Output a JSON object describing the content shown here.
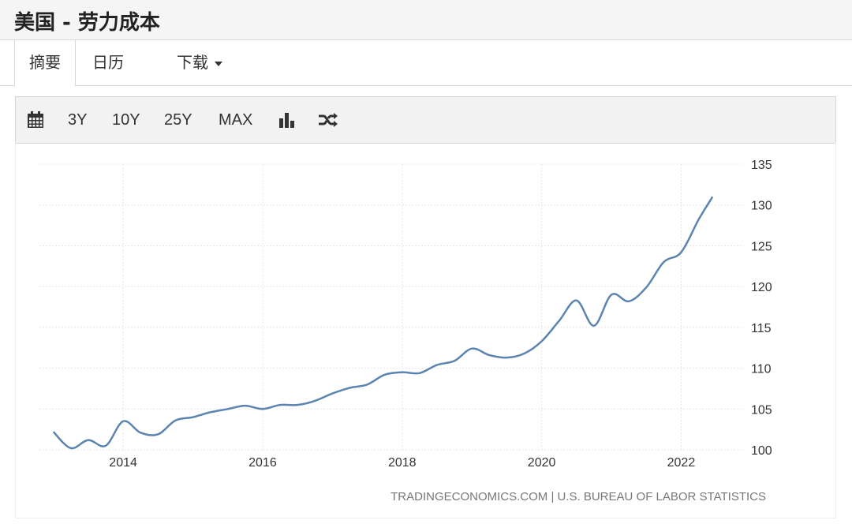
{
  "page": {
    "title": "美国 - 劳力成本"
  },
  "tabs": [
    {
      "label": "摘要"
    },
    {
      "label": "日历"
    },
    {
      "label": "下载"
    }
  ],
  "toolbar": {
    "calendar_icon": "calendar-icon",
    "ranges": [
      "3Y",
      "10Y",
      "25Y",
      "MAX"
    ],
    "bar_chart_icon": "bar-chart-icon",
    "shuffle_icon": "shuffle-icon"
  },
  "colors": {
    "line": "#5b84b1",
    "grid": "#e8e8e8",
    "toolbar_bg": "#f2f2f2"
  },
  "chart_data": {
    "type": "line",
    "title": "",
    "xlabel": "",
    "ylabel": "",
    "ylim": [
      100,
      135
    ],
    "yticks": [
      100,
      105,
      110,
      115,
      120,
      125,
      130,
      135
    ],
    "xticks": [
      2014,
      2016,
      2018,
      2020,
      2022
    ],
    "xlim": [
      2012.8,
      2022.9
    ],
    "grid": true,
    "legend": "none",
    "source": "TRADINGECONOMICS.COM | U.S. BUREAU OF LABOR STATISTICS",
    "series": [
      {
        "x": [
          2013.0,
          2013.25,
          2013.5,
          2013.75,
          2014.0,
          2014.25,
          2014.5,
          2014.75,
          2015.0,
          2015.25,
          2015.5,
          2015.75,
          2016.0,
          2016.25,
          2016.5,
          2016.75,
          2017.0,
          2017.25,
          2017.5,
          2017.75,
          2018.0,
          2018.25,
          2018.5,
          2018.75,
          2019.0,
          2019.25,
          2019.5,
          2019.75,
          2020.0,
          2020.25,
          2020.5,
          2020.75,
          2021.0,
          2021.25,
          2021.5,
          2021.75,
          2022.0,
          2022.25,
          2022.45
        ],
        "values": [
          102.2,
          100.2,
          101.2,
          100.5,
          103.5,
          102.1,
          101.9,
          103.6,
          104.0,
          104.6,
          105.0,
          105.4,
          105.0,
          105.5,
          105.5,
          106.0,
          106.9,
          107.6,
          108.0,
          109.2,
          109.5,
          109.4,
          110.4,
          110.9,
          112.4,
          111.6,
          111.3,
          111.8,
          113.3,
          115.8,
          118.3,
          115.2,
          119.0,
          118.2,
          119.9,
          123.0,
          124.2,
          128.2,
          131.0
        ]
      }
    ]
  }
}
